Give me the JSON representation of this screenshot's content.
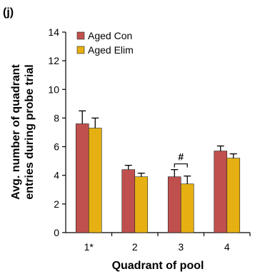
{
  "panel_label": "(j)",
  "chart_data": {
    "type": "bar",
    "categories": [
      "1*",
      "2",
      "3",
      "4"
    ],
    "series": [
      {
        "name": "Aged Con",
        "color": "#c0504d",
        "values": [
          7.6,
          4.4,
          3.9,
          5.7
        ],
        "errors": [
          0.9,
          0.3,
          0.5,
          0.35
        ]
      },
      {
        "name": "Aged Elim",
        "color": "#e6b012",
        "values": [
          7.3,
          3.9,
          3.4,
          5.2
        ],
        "errors": [
          0.7,
          0.25,
          0.55,
          0.3
        ]
      }
    ],
    "xlabel": "Quadrant of pool",
    "ylabel_lines": [
      "Avg. number of quadrant",
      "entries during probe trial"
    ],
    "ylim": [
      0,
      14
    ],
    "yticks": [
      0,
      2,
      4,
      6,
      8,
      10,
      12,
      14
    ],
    "legend_position": "top-left",
    "annotations": [
      {
        "category_index": 2,
        "text": "#"
      }
    ],
    "grid": false
  }
}
